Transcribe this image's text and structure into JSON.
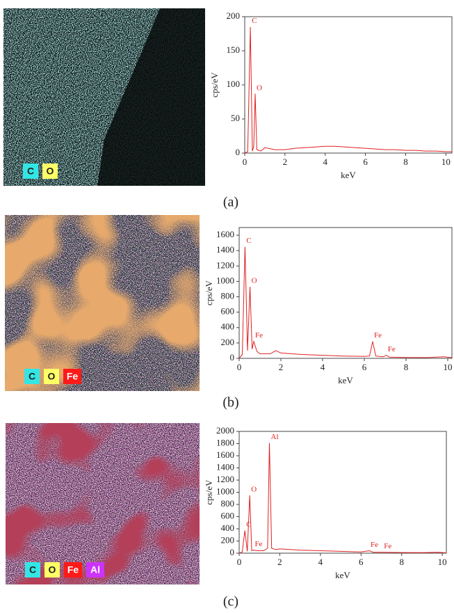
{
  "chart_data": [
    {
      "type": "line",
      "caption": "(a)",
      "x_label": "keV",
      "y_label": "cps/eV",
      "color": "#e02020",
      "xlim": [
        0,
        10.3
      ],
      "ylim": [
        0,
        200
      ],
      "xticks": [
        0,
        2,
        4,
        6,
        8,
        10
      ],
      "yticks": [
        0,
        50,
        100,
        150,
        200
      ],
      "x": [
        0,
        0.15,
        0.28,
        0.38,
        0.45,
        0.52,
        0.6,
        0.8,
        1,
        1.5,
        2,
        2.5,
        3,
        3.5,
        4,
        4.5,
        5,
        5.5,
        6,
        6.5,
        7,
        7.5,
        8,
        8.5,
        9,
        9.5,
        10,
        10.3
      ],
      "values": [
        0,
        2,
        185,
        3,
        10,
        87,
        5,
        3,
        8,
        5,
        5,
        7,
        8,
        9,
        10,
        10,
        9,
        8,
        7,
        6,
        5,
        5,
        4,
        4,
        3,
        3,
        2,
        2
      ],
      "annotations": [
        {
          "text": "C",
          "x": 0.28,
          "y": 185
        },
        {
          "text": "O",
          "x": 0.52,
          "y": 87
        }
      ],
      "map_legend": [
        {
          "label": "C",
          "color": "#33e6e6"
        },
        {
          "label": "O",
          "color": "#ffff66"
        }
      ]
    },
    {
      "type": "line",
      "caption": "(b)",
      "x_label": "keV",
      "y_label": "cps/eV",
      "color": "#e02020",
      "xlim": [
        0,
        10.2
      ],
      "ylim": [
        0,
        1700
      ],
      "xticks": [
        0,
        2,
        4,
        6,
        8,
        10
      ],
      "yticks": [
        0,
        200,
        400,
        600,
        800,
        1000,
        1200,
        1400,
        1600
      ],
      "x": [
        0,
        0.15,
        0.28,
        0.4,
        0.52,
        0.62,
        0.7,
        0.85,
        1,
        1.5,
        1.75,
        2,
        2.5,
        3,
        4,
        5,
        6,
        6.25,
        6.4,
        6.55,
        6.9,
        7.06,
        7.2,
        8,
        9,
        9.8,
        10.2
      ],
      "values": [
        0,
        50,
        1450,
        100,
        930,
        120,
        220,
        90,
        60,
        60,
        100,
        70,
        60,
        50,
        40,
        30,
        25,
        30,
        220,
        30,
        20,
        40,
        15,
        12,
        10,
        20,
        10
      ],
      "annotations": [
        {
          "text": "C",
          "x": 0.28,
          "y": 1450
        },
        {
          "text": "O",
          "x": 0.52,
          "y": 930
        },
        {
          "text": "Fe",
          "x": 0.7,
          "y": 220
        },
        {
          "text": "Fe",
          "x": 6.4,
          "y": 220
        },
        {
          "text": "Fe",
          "x": 7.06,
          "y": 40
        }
      ],
      "map_legend": [
        {
          "label": "C",
          "color": "#33e6e6"
        },
        {
          "label": "O",
          "color": "#ffff66"
        },
        {
          "label": "Fe",
          "color": "#ff1a1a"
        }
      ]
    },
    {
      "type": "line",
      "caption": "(c)",
      "x_label": "keV",
      "y_label": "cps/eV",
      "color": "#e02020",
      "xlim": [
        0,
        10.2
      ],
      "ylim": [
        0,
        2000
      ],
      "xticks": [
        0,
        2,
        4,
        6,
        8,
        10
      ],
      "yticks": [
        0,
        200,
        400,
        600,
        800,
        1000,
        1200,
        1400,
        1600,
        1800,
        2000
      ],
      "x": [
        0,
        0.15,
        0.28,
        0.4,
        0.52,
        0.62,
        0.7,
        0.9,
        1.2,
        1.4,
        1.49,
        1.6,
        1.8,
        2,
        2.5,
        3,
        4,
        5,
        6,
        6.4,
        6.6,
        7.06,
        8,
        9,
        9.8,
        10.2
      ],
      "values": [
        0,
        20,
        370,
        30,
        950,
        40,
        50,
        40,
        40,
        80,
        1810,
        80,
        60,
        70,
        60,
        50,
        40,
        30,
        20,
        40,
        15,
        15,
        10,
        8,
        15,
        5
      ],
      "annotations": [
        {
          "text": "C",
          "x": 0.28,
          "y": 370
        },
        {
          "text": "O",
          "x": 0.52,
          "y": 950
        },
        {
          "text": "Fe",
          "x": 0.7,
          "y": 50
        },
        {
          "text": "Al",
          "x": 1.49,
          "y": 1810
        },
        {
          "text": "Fe",
          "x": 6.4,
          "y": 40
        },
        {
          "text": "Fe",
          "x": 7.06,
          "y": 15
        }
      ],
      "map_legend": [
        {
          "label": "C",
          "color": "#33e6e6"
        },
        {
          "label": "O",
          "color": "#ffff66"
        },
        {
          "label": "Fe",
          "color": "#ff1a1a"
        },
        {
          "label": "Al",
          "color": "#cc33ff"
        }
      ]
    }
  ]
}
